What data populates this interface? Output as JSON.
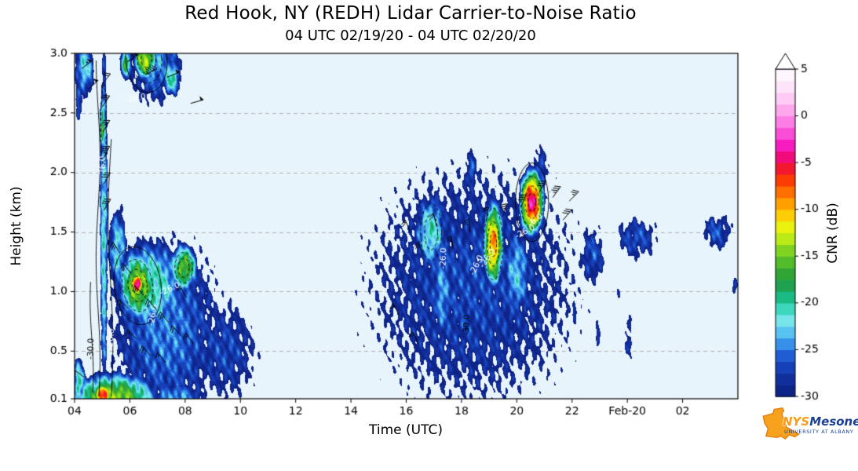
{
  "chart_data": {
    "type": "heatmap",
    "title": "Red Hook, NY (REDH) Lidar Carrier-to-Noise Ratio",
    "subtitle": "04 UTC 02/19/20 - 04 UTC 02/20/20",
    "xlabel": "Time (UTC)",
    "ylabel": "Height (km)",
    "background": "#e8f4fb",
    "x_range": [
      4,
      28
    ],
    "y_range": [
      0.1,
      3.0
    ],
    "x_ticks": [
      {
        "t": 4,
        "label": "04"
      },
      {
        "t": 6,
        "label": "06"
      },
      {
        "t": 8,
        "label": "08"
      },
      {
        "t": 10,
        "label": "10"
      },
      {
        "t": 12,
        "label": "12"
      },
      {
        "t": 14,
        "label": "14"
      },
      {
        "t": 16,
        "label": "16"
      },
      {
        "t": 18,
        "label": "18"
      },
      {
        "t": 20,
        "label": "20"
      },
      {
        "t": 22,
        "label": "22"
      },
      {
        "t": 24,
        "label": "Feb-20"
      },
      {
        "t": 26,
        "label": "02"
      }
    ],
    "y_ticks": [
      {
        "h": 0.1,
        "label": "0.1"
      },
      {
        "h": 0.5,
        "label": "0.5"
      },
      {
        "h": 1.0,
        "label": "1.0"
      },
      {
        "h": 1.5,
        "label": "1.5"
      },
      {
        "h": 2.0,
        "label": "2.0"
      },
      {
        "h": 2.5,
        "label": "2.5"
      },
      {
        "h": 3.0,
        "label": "3.0"
      }
    ],
    "grid_heights": [
      0.5,
      1.0,
      1.5,
      2.0,
      2.5
    ],
    "colorbar": {
      "label": "CNR (dB)",
      "ticks": [
        5,
        0,
        -5,
        -10,
        -15,
        -20,
        -25,
        -30
      ],
      "range": [
        -30,
        5
      ],
      "step": 1.25,
      "stops": [
        [
          -30,
          "#0c1f7f"
        ],
        [
          -28,
          "#12309f"
        ],
        [
          -26,
          "#1a4ecb"
        ],
        [
          -25,
          "#2a75e4"
        ],
        [
          -24,
          "#3fa2ee"
        ],
        [
          -23,
          "#5cc8f1"
        ],
        [
          -22,
          "#7ee6f0"
        ],
        [
          -21,
          "#50e0cf"
        ],
        [
          -20,
          "#1fc9a0"
        ],
        [
          -19,
          "#17b274"
        ],
        [
          -18,
          "#1fa04a"
        ],
        [
          -17,
          "#2fa438"
        ],
        [
          -16,
          "#46b52e"
        ],
        [
          -15,
          "#66c826"
        ],
        [
          -14,
          "#90dc1e"
        ],
        [
          -13,
          "#c0ee16"
        ],
        [
          -12,
          "#e8f510"
        ],
        [
          -11,
          "#fddc08"
        ],
        [
          -10,
          "#ffb900"
        ],
        [
          -9,
          "#ff9100"
        ],
        [
          -8,
          "#ff6a00"
        ],
        [
          -7,
          "#fc4100"
        ],
        [
          -6,
          "#f6201c"
        ],
        [
          -5,
          "#f00850"
        ],
        [
          -4,
          "#f30d96"
        ],
        [
          -3,
          "#f81fc6"
        ],
        [
          -2,
          "#fa48d7"
        ],
        [
          -1,
          "#fc71e1"
        ],
        [
          0,
          "#fd94e9"
        ],
        [
          1,
          "#fdb3ef"
        ],
        [
          2,
          "#fecff5"
        ],
        [
          3,
          "#fee2f9"
        ],
        [
          4,
          "#fdf2fd"
        ],
        [
          5,
          "#ffffff"
        ]
      ]
    },
    "features": [
      {
        "t": 5.05,
        "h": 1.55,
        "sx": 0.11,
        "sy": 1.2,
        "p": -21,
        "k": 6
      },
      {
        "t": 5.0,
        "h": 2.4,
        "sx": 0.09,
        "sy": 0.22,
        "p": -16,
        "k": 10
      },
      {
        "t": 4.35,
        "h": 2.88,
        "sx": 0.3,
        "sy": 0.2,
        "p": -22,
        "k": 6
      },
      {
        "t": 4.15,
        "h": 2.6,
        "sx": 0.12,
        "sy": 0.15,
        "p": -25,
        "k": 6
      },
      {
        "t": 6.9,
        "h": 2.97,
        "sx": 0.8,
        "sy": 0.33,
        "p": -24,
        "k": 5
      },
      {
        "t": 6.55,
        "h": 2.95,
        "sx": 0.38,
        "sy": 0.15,
        "p": -13,
        "k": 12
      },
      {
        "t": 7.5,
        "h": 2.8,
        "sx": 0.3,
        "sy": 0.14,
        "p": -20,
        "k": 8
      },
      {
        "t": 5.85,
        "h": 2.92,
        "sx": 0.2,
        "sy": 0.13,
        "p": -18,
        "k": 10
      },
      {
        "t": 7.3,
        "h": 0.68,
        "sx": 1.6,
        "sy": 0.62,
        "p": -25,
        "k": 4
      },
      {
        "t": 9.4,
        "h": 0.5,
        "sx": 1.1,
        "sy": 0.38,
        "p": -27,
        "k": 4
      },
      {
        "t": 6.7,
        "h": 1.05,
        "sx": 1.0,
        "sy": 0.3,
        "p": -20,
        "k": 6
      },
      {
        "t": 6.3,
        "h": 1.05,
        "sx": 0.55,
        "sy": 0.22,
        "p": -14,
        "k": 8
      },
      {
        "t": 6.24,
        "h": 1.06,
        "sx": 0.26,
        "sy": 0.1,
        "p": -2,
        "k": 25
      },
      {
        "t": 7.95,
        "h": 1.2,
        "sx": 0.42,
        "sy": 0.17,
        "p": -15,
        "k": 10
      },
      {
        "t": 5.55,
        "h": 1.35,
        "sx": 0.28,
        "sy": 0.3,
        "p": -22,
        "k": 6
      },
      {
        "t": 5.4,
        "h": 0.1,
        "sx": 1.2,
        "sy": 0.16,
        "p": -14,
        "k": 8
      },
      {
        "t": 5.0,
        "h": 0.13,
        "sx": 0.3,
        "sy": 0.09,
        "p": -4,
        "k": 20
      },
      {
        "t": 7.7,
        "h": 0.1,
        "sx": 0.9,
        "sy": 0.12,
        "p": -24,
        "k": 5
      },
      {
        "t": 4.15,
        "h": 0.22,
        "sx": 0.2,
        "sy": 0.2,
        "p": -20,
        "k": 8
      },
      {
        "t": 18.4,
        "h": 1.05,
        "sx": 3.0,
        "sy": 0.8,
        "p": -27,
        "k": 3
      },
      {
        "t": 16.9,
        "h": 1.5,
        "sx": 0.55,
        "sy": 0.3,
        "p": -21,
        "k": 8
      },
      {
        "t": 17.3,
        "h": 1.0,
        "sx": 0.35,
        "sy": 0.45,
        "p": -24,
        "k": 6
      },
      {
        "t": 19.15,
        "h": 1.4,
        "sx": 0.33,
        "sy": 0.32,
        "p": -9,
        "k": 14
      },
      {
        "t": 20.55,
        "h": 1.75,
        "sx": 0.38,
        "sy": 0.24,
        "p": -4,
        "k": 16
      },
      {
        "t": 20.0,
        "h": 1.15,
        "sx": 0.45,
        "sy": 0.35,
        "p": -23,
        "k": 6
      },
      {
        "t": 18.35,
        "h": 2.0,
        "sx": 0.22,
        "sy": 0.18,
        "p": -26,
        "k": 5
      },
      {
        "t": 20.85,
        "h": 2.0,
        "sx": 0.28,
        "sy": 0.2,
        "p": -26,
        "k": 5
      },
      {
        "t": 22.75,
        "h": 1.3,
        "sx": 0.45,
        "sy": 0.24,
        "p": -26.5,
        "k": 5
      },
      {
        "t": 22.1,
        "h": 0.85,
        "sx": 0.12,
        "sy": 0.12,
        "p": -28,
        "k": 6
      },
      {
        "t": 22.95,
        "h": 0.62,
        "sx": 0.1,
        "sy": 0.22,
        "p": -28,
        "k": 6
      },
      {
        "t": 24.35,
        "h": 1.45,
        "sx": 0.75,
        "sy": 0.17,
        "p": -26.5,
        "k": 5
      },
      {
        "t": 24.05,
        "h": 0.6,
        "sx": 0.16,
        "sy": 0.26,
        "p": -28,
        "k": 6
      },
      {
        "t": 23.7,
        "h": 1.0,
        "sx": 0.1,
        "sy": 0.09,
        "p": -29,
        "k": 6
      },
      {
        "t": 27.25,
        "h": 1.5,
        "sx": 0.55,
        "sy": 0.15,
        "p": -26.5,
        "k": 5
      },
      {
        "t": 27.9,
        "h": 1.05,
        "sx": 0.16,
        "sy": 0.1,
        "p": -28,
        "k": 6
      }
    ],
    "contour_rings": [
      {
        "t": 6.6,
        "h": 2.95,
        "rx": 0.55,
        "ry": 0.2,
        "rot": -5,
        "dashed": true,
        "n": 3
      },
      {
        "t": 6.6,
        "h": 2.95,
        "rx": 0.75,
        "ry": 0.28,
        "rot": -5,
        "dashed": false,
        "n": 1
      },
      {
        "t": 6.28,
        "h": 1.05,
        "rx": 0.55,
        "ry": 0.22,
        "rot": -8,
        "dashed": true,
        "n": 3
      },
      {
        "t": 6.28,
        "h": 1.05,
        "rx": 0.85,
        "ry": 0.33,
        "rot": -8,
        "dashed": false,
        "n": 1
      },
      {
        "t": 7.95,
        "h": 1.2,
        "rx": 0.32,
        "ry": 0.13,
        "rot": 0,
        "dashed": true,
        "n": 2
      },
      {
        "t": 16.9,
        "h": 1.5,
        "rx": 0.38,
        "ry": 0.24,
        "rot": 0,
        "dashed": true,
        "n": 2
      },
      {
        "t": 19.15,
        "h": 1.4,
        "rx": 0.34,
        "ry": 0.3,
        "rot": 0,
        "dashed": true,
        "n": 3
      },
      {
        "t": 20.55,
        "h": 1.75,
        "rx": 0.4,
        "ry": 0.22,
        "rot": 0,
        "dashed": true,
        "n": 3
      },
      {
        "t": 20.55,
        "h": 1.75,
        "rx": 0.6,
        "ry": 0.33,
        "rot": 0,
        "dashed": false,
        "n": 1
      },
      {
        "t": 5.05,
        "h": 2.4,
        "rx": 0.1,
        "ry": 0.35,
        "rot": 0,
        "dashed": true,
        "n": 1
      }
    ],
    "contour_lines": [
      {
        "t": 4.85,
        "h0": 0.12,
        "h1": 2.95,
        "amp": 2.5,
        "freq": 3.7
      },
      {
        "t": 5.3,
        "h0": 0.12,
        "h1": 2.3,
        "amp": 3.0,
        "freq": 2.9
      },
      {
        "t": 4.62,
        "h0": 0.15,
        "h1": 1.1,
        "amp": 2.0,
        "freq": 5.1
      }
    ],
    "contour_labels": [
      {
        "text": "-26.0",
        "t": 5.03,
        "h": 2.05,
        "rot": -90,
        "color": "#ffffff"
      },
      {
        "text": "-30.0",
        "t": 4.6,
        "h": 0.52,
        "rot": -88,
        "color": "#000000"
      },
      {
        "text": "-26.0",
        "t": 5.32,
        "h": 0.6,
        "rot": -85,
        "color": "#ffffff"
      },
      {
        "text": "-26.0",
        "t": 6.85,
        "h": 0.8,
        "rot": -78,
        "color": "#ffffff"
      },
      {
        "text": "-26.0",
        "t": 7.45,
        "h": 1.02,
        "rot": -25,
        "color": "#ffffff"
      },
      {
        "text": "-26.0",
        "t": 6.2,
        "h": 2.62,
        "rot": -10,
        "color": "#ffffff"
      },
      {
        "text": "-26.0",
        "t": 17.35,
        "h": 1.28,
        "rot": -88,
        "color": "#ffffff"
      },
      {
        "text": "-26.0",
        "t": 18.55,
        "h": 1.22,
        "rot": -65,
        "color": "#ffffff"
      },
      {
        "text": "-26.0",
        "t": 18.95,
        "h": 1.28,
        "rot": -55,
        "color": "#ffffff"
      },
      {
        "text": "-30.0",
        "t": 18.2,
        "h": 0.72,
        "rot": -88,
        "color": "#000000"
      },
      {
        "text": "-26.0",
        "t": 20.3,
        "h": 1.5,
        "rot": -28,
        "color": "#ffffff"
      },
      {
        "text": "-6.0",
        "t": 20.68,
        "h": 1.6,
        "rot": -40,
        "color": "#ffffff"
      }
    ],
    "wind_barbs": [
      [
        5.05,
        1.68,
        58,
        30
      ],
      [
        5.05,
        1.9,
        60,
        30
      ],
      [
        5.05,
        2.12,
        63,
        35
      ],
      [
        5.03,
        2.34,
        60,
        25
      ],
      [
        5.0,
        2.55,
        56,
        25
      ],
      [
        5.0,
        2.74,
        52,
        20
      ],
      [
        4.25,
        2.87,
        38,
        55
      ],
      [
        4.5,
        2.7,
        42,
        50
      ],
      [
        5.9,
        2.93,
        32,
        55
      ],
      [
        6.55,
        2.82,
        27,
        45
      ],
      [
        7.35,
        2.8,
        22,
        50
      ],
      [
        8.2,
        2.58,
        16,
        50
      ],
      [
        5.65,
        1.32,
        122,
        25
      ],
      [
        6.05,
        1.15,
        128,
        20
      ],
      [
        6.5,
        0.97,
        133,
        25
      ],
      [
        6.95,
        0.85,
        129,
        20
      ],
      [
        7.4,
        0.74,
        127,
        25
      ],
      [
        7.85,
        0.63,
        131,
        20
      ],
      [
        6.25,
        0.6,
        134,
        15
      ],
      [
        6.75,
        0.46,
        129,
        20
      ],
      [
        7.3,
        0.4,
        127,
        15
      ],
      [
        5.95,
        0.86,
        137,
        20
      ],
      [
        8.3,
        0.56,
        124,
        15
      ],
      [
        8.05,
        0.95,
        119,
        15
      ],
      [
        4.35,
        0.28,
        143,
        20
      ],
      [
        16.15,
        1.5,
        113,
        20
      ],
      [
        16.6,
        1.31,
        109,
        25
      ],
      [
        17.1,
        1.55,
        104,
        20
      ],
      [
        17.7,
        1.36,
        99,
        25
      ],
      [
        18.3,
        1.5,
        93,
        25
      ],
      [
        18.9,
        1.6,
        81,
        20
      ],
      [
        19.5,
        1.63,
        74,
        25
      ],
      [
        20.15,
        1.71,
        67,
        30
      ],
      [
        20.8,
        1.83,
        59,
        30
      ],
      [
        21.3,
        1.79,
        54,
        35
      ],
      [
        21.67,
        1.6,
        49,
        30
      ],
      [
        21.9,
        1.76,
        45,
        25
      ],
      [
        15.75,
        0.8,
        118,
        15
      ],
      [
        16.45,
        0.56,
        116,
        15
      ]
    ]
  },
  "logo": {
    "name_prefix": "NYS",
    "name_suffix": "Mesonet",
    "tagline": "UNIVERSITY AT ALBANY"
  }
}
